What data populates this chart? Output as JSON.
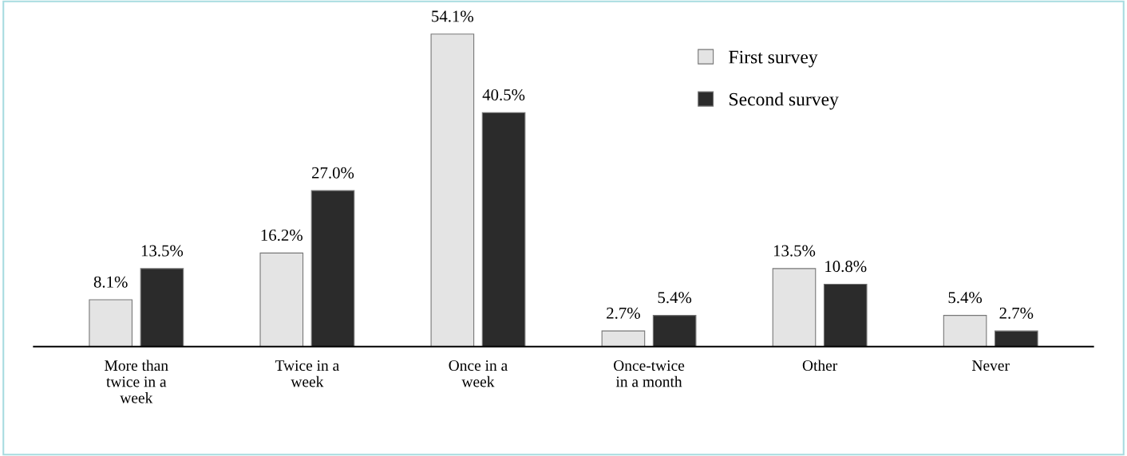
{
  "chart_data": {
    "type": "bar",
    "categories": [
      "More than\ntwice in a\nweek",
      "Twice in a\nweek",
      "Once in a\nweek",
      "Once-twice\nin a month",
      "Other",
      "Never"
    ],
    "series": [
      {
        "name": "First survey",
        "color": "#e4e4e4",
        "values": [
          8.1,
          16.2,
          54.1,
          2.7,
          13.5,
          5.4
        ],
        "value_labels": [
          "8.1%",
          "16.2%",
          "54.1%",
          "2.7%",
          "13.5%",
          "5.4%"
        ]
      },
      {
        "name": "Second survey",
        "color": "#2b2b2b",
        "values": [
          13.5,
          27.0,
          40.5,
          5.4,
          10.8,
          2.7
        ],
        "value_labels": [
          "13.5%",
          "27.0%",
          "40.5%",
          "5.4%",
          "10.8%",
          "2.7%"
        ]
      }
    ],
    "legend": "top right",
    "grid": false,
    "tick_labels": "x"
  }
}
